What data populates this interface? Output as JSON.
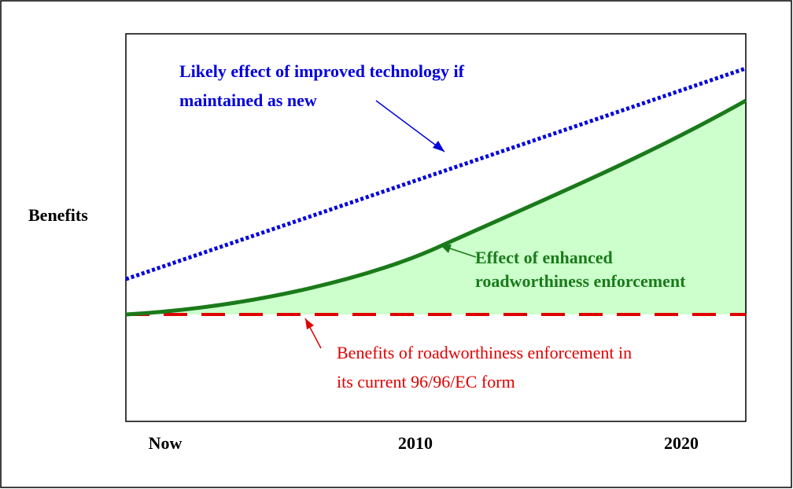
{
  "y_label": "Benefits",
  "x_labels": [
    "Now",
    "2010",
    "2020"
  ],
  "annotations": {
    "technology": [
      "Likely effect of improved technology if",
      "maintained as new"
    ],
    "enhanced": [
      "Effect of enhanced",
      "roadworthiness enforcement"
    ],
    "current": [
      "Benefits of roadworthiness enforcement in",
      "its current 96/96/EC form"
    ]
  }
}
